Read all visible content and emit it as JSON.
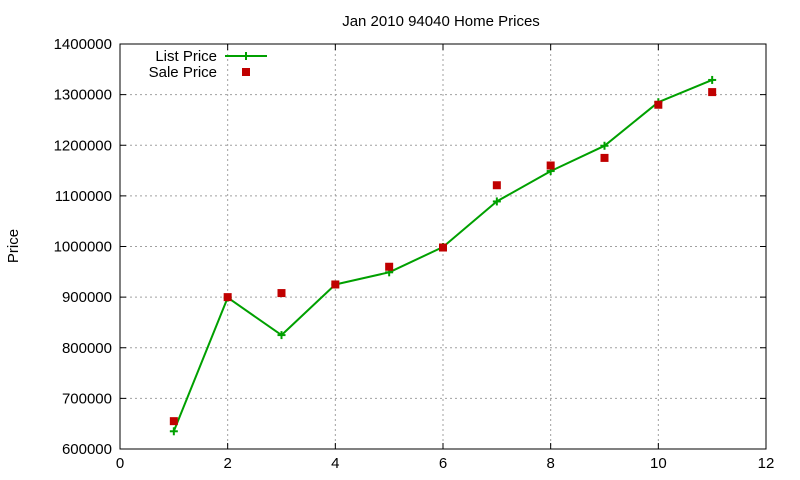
{
  "colors": {
    "list_line": "#00a000",
    "sale_marker": "#c00000",
    "grid": "#a0a0a0",
    "axis": "#000000",
    "background": "#ffffff"
  },
  "chart_data": {
    "type": "scatter",
    "title": "Jan 2010 94040 Home Prices",
    "xlabel": "",
    "ylabel": "Price",
    "xlim": [
      0,
      12
    ],
    "ylim": [
      600000,
      1400000
    ],
    "xticks": [
      0,
      2,
      4,
      6,
      8,
      10,
      12
    ],
    "yticks": [
      600000,
      700000,
      800000,
      900000,
      1000000,
      1100000,
      1200000,
      1300000,
      1400000
    ],
    "grid": true,
    "legend_position": "top-left",
    "series": [
      {
        "name": "List Price",
        "style": "line-with-plus-markers",
        "color": "#00a000",
        "x": [
          1,
          2,
          3,
          4,
          5,
          6,
          7,
          8,
          9,
          10,
          11
        ],
        "y": [
          635000,
          899000,
          825000,
          925000,
          949000,
          999000,
          1089000,
          1149000,
          1199000,
          1285000,
          1329000
        ]
      },
      {
        "name": "Sale Price",
        "style": "square-markers",
        "color": "#c00000",
        "x": [
          1,
          2,
          3,
          4,
          5,
          6,
          7,
          8,
          9,
          10,
          11
        ],
        "y": [
          655000,
          900000,
          908000,
          925000,
          960000,
          998000,
          1121000,
          1160000,
          1175000,
          1280000,
          1305000
        ]
      }
    ]
  }
}
